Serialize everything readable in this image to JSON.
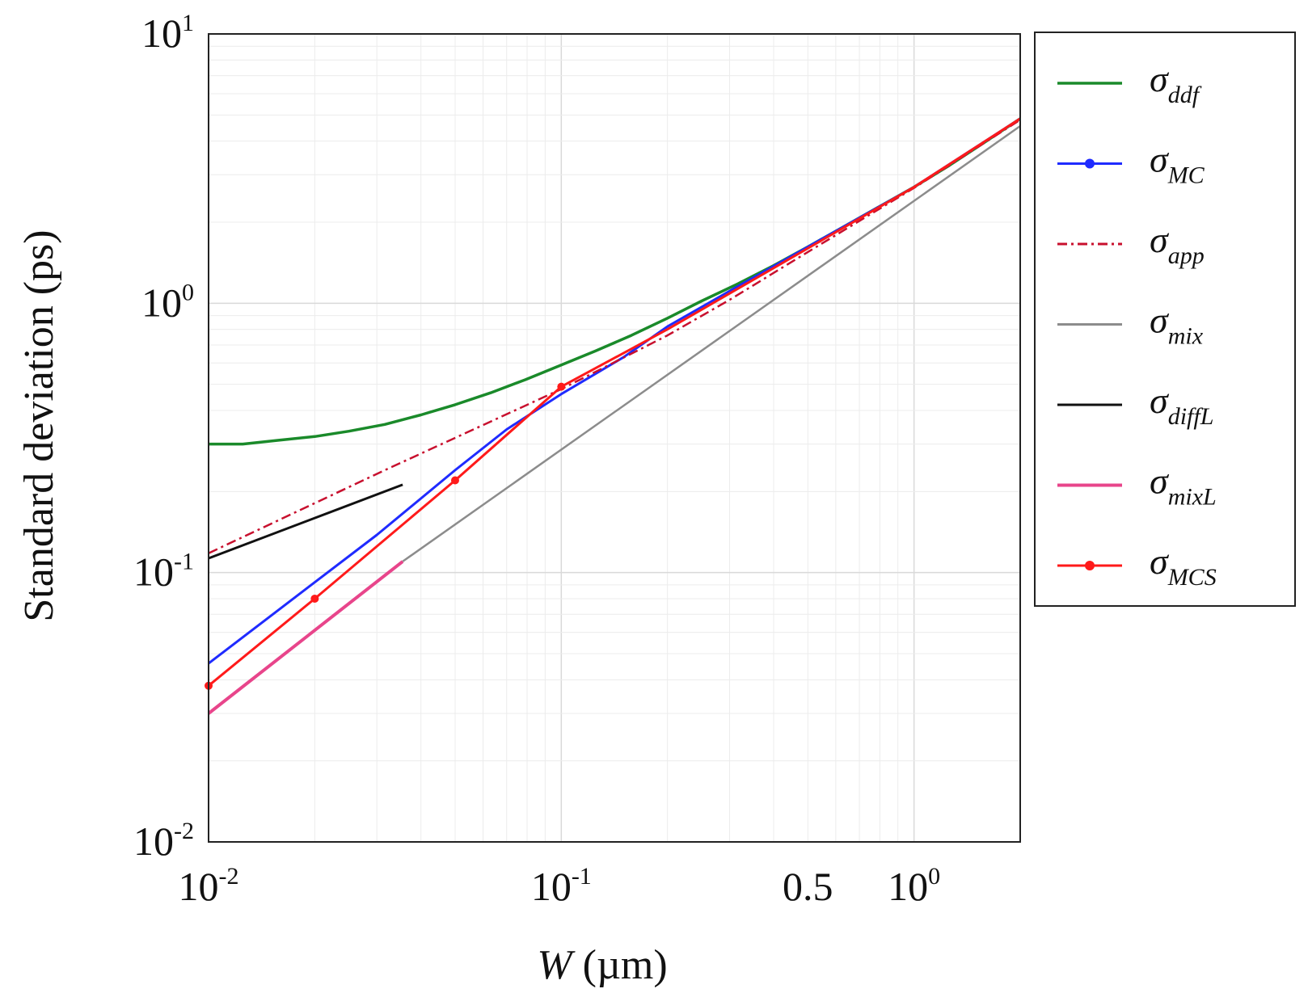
{
  "chart_data": {
    "type": "line",
    "title": "",
    "xlabel": {
      "symbol": "W",
      "unit": "(µm)"
    },
    "ylabel": "Standard deviation (ps)",
    "xscale": "log",
    "yscale": "log",
    "xlim": [
      0.01,
      2.0
    ],
    "ylim": [
      0.01,
      10
    ],
    "grid": true,
    "legend_position": "outside-right-top",
    "x_ticks": [
      {
        "value": 0.01,
        "base": "10",
        "exp": "-2"
      },
      {
        "value": 0.1,
        "base": "10",
        "exp": "-1"
      },
      {
        "value": 0.5,
        "base": "0.5",
        "exp": ""
      },
      {
        "value": 1,
        "base": "10",
        "exp": "0"
      }
    ],
    "y_ticks": [
      {
        "value": 0.01,
        "base": "10",
        "exp": "-2"
      },
      {
        "value": 0.1,
        "base": "10",
        "exp": "-1"
      },
      {
        "value": 1,
        "base": "10",
        "exp": "0"
      },
      {
        "value": 10,
        "base": "10",
        "exp": "1"
      }
    ],
    "series": [
      {
        "name": "σ_ddf",
        "symbol": "σ",
        "sub": "ddf",
        "color": "#1a8a2a",
        "style": "solid",
        "width": 3.5,
        "markers": false,
        "x": [
          0.01,
          0.0125,
          0.0158,
          0.02,
          0.025,
          0.0316,
          0.04,
          0.05,
          0.063,
          0.079,
          0.1,
          0.125,
          0.158,
          0.2,
          0.25,
          0.316,
          0.4,
          0.5,
          0.63,
          0.79,
          1.0,
          1.26,
          1.58,
          2.0
        ],
        "y": [
          0.3,
          0.3,
          0.31,
          0.32,
          0.335,
          0.355,
          0.385,
          0.42,
          0.465,
          0.52,
          0.59,
          0.665,
          0.76,
          0.88,
          1.02,
          1.18,
          1.38,
          1.62,
          1.92,
          2.27,
          2.7,
          3.25,
          3.95,
          4.85
        ]
      },
      {
        "name": "σ_MC",
        "symbol": "σ",
        "sub": "MC",
        "color": "#1f2bff",
        "style": "solid",
        "width": 3,
        "markers": false,
        "x": [
          0.01,
          0.02,
          0.03,
          0.05,
          0.07,
          0.1,
          0.15,
          0.2,
          0.3,
          0.5,
          1.0,
          2.0
        ],
        "y": [
          0.046,
          0.092,
          0.138,
          0.24,
          0.34,
          0.46,
          0.63,
          0.82,
          1.11,
          1.62,
          2.7,
          4.85
        ]
      },
      {
        "name": "σ_app",
        "symbol": "σ",
        "sub": "app",
        "color": "#c8102e",
        "style": "dashdot",
        "width": 2.5,
        "markers": false,
        "x": [
          0.01,
          0.0316,
          0.1,
          0.2,
          0.3,
          0.5,
          1.0,
          2.0
        ],
        "y": [
          0.118,
          0.24,
          0.48,
          0.76,
          1.03,
          1.55,
          2.68,
          4.8
        ]
      },
      {
        "name": "σ_mix",
        "symbol": "σ",
        "sub": "mix",
        "color": "#8c8c8c",
        "style": "solid",
        "width": 2.5,
        "markers": false,
        "x": [
          0.0355,
          2.0
        ],
        "y": [
          0.11,
          4.55
        ]
      },
      {
        "name": "σ_diffL",
        "symbol": "σ",
        "sub": "diffL",
        "color": "#111111",
        "style": "solid",
        "width": 3,
        "markers": false,
        "x": [
          0.01,
          0.0355
        ],
        "y": [
          0.113,
          0.212
        ]
      },
      {
        "name": "σ_mixL",
        "symbol": "σ",
        "sub": "mixL",
        "color": "#e8458b",
        "style": "solid",
        "width": 4,
        "markers": false,
        "x": [
          0.01,
          0.0355
        ],
        "y": [
          0.03,
          0.11
        ]
      },
      {
        "name": "σ_MCS",
        "symbol": "σ",
        "sub": "MCS",
        "color": "#ff1a1a",
        "style": "solid",
        "width": 3,
        "markers": true,
        "x": [
          0.01,
          0.02,
          0.05,
          0.1,
          0.2,
          0.5,
          1.0,
          2.0
        ],
        "y": [
          0.038,
          0.08,
          0.22,
          0.49,
          0.8,
          1.6,
          2.7,
          4.85
        ]
      }
    ]
  }
}
